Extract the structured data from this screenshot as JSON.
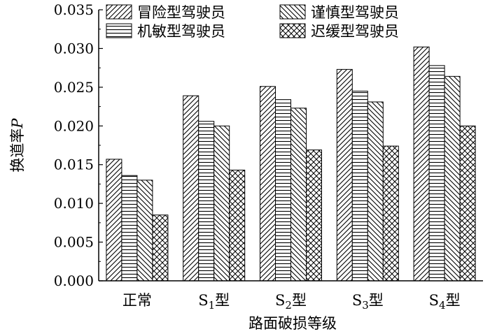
{
  "chart_data": {
    "type": "bar",
    "xlabel": "路面破损等级",
    "ylabel": "换道率",
    "ylabel_symbol": "P",
    "ylim": [
      0,
      0.035
    ],
    "yticks": [
      "0.000",
      "0.005",
      "0.010",
      "0.015",
      "0.020",
      "0.025",
      "0.030",
      "0.035"
    ],
    "categories": [
      {
        "base": "正常",
        "sub": "",
        "suffix": ""
      },
      {
        "base": "S",
        "sub": "1",
        "suffix": "型"
      },
      {
        "base": "S",
        "sub": "2",
        "suffix": "型"
      },
      {
        "base": "S",
        "sub": "3",
        "suffix": "型"
      },
      {
        "base": "S",
        "sub": "4",
        "suffix": "型"
      }
    ],
    "legend_position": "top",
    "series": [
      {
        "name": "冒险型驾驶员",
        "pattern": "diag-right",
        "values": [
          0.0157,
          0.0239,
          0.0251,
          0.0273,
          0.0302
        ]
      },
      {
        "name": "机敏型驾驶员",
        "pattern": "horizontal",
        "values": [
          0.0136,
          0.0206,
          0.0234,
          0.0245,
          0.0278
        ]
      },
      {
        "name": "谨慎型驾驶员",
        "pattern": "diag-left",
        "values": [
          0.013,
          0.02,
          0.0223,
          0.0231,
          0.0264
        ]
      },
      {
        "name": "迟缓型驾驶员",
        "pattern": "crosshatch",
        "values": [
          0.0085,
          0.0143,
          0.0169,
          0.0174,
          0.02
        ]
      }
    ]
  }
}
